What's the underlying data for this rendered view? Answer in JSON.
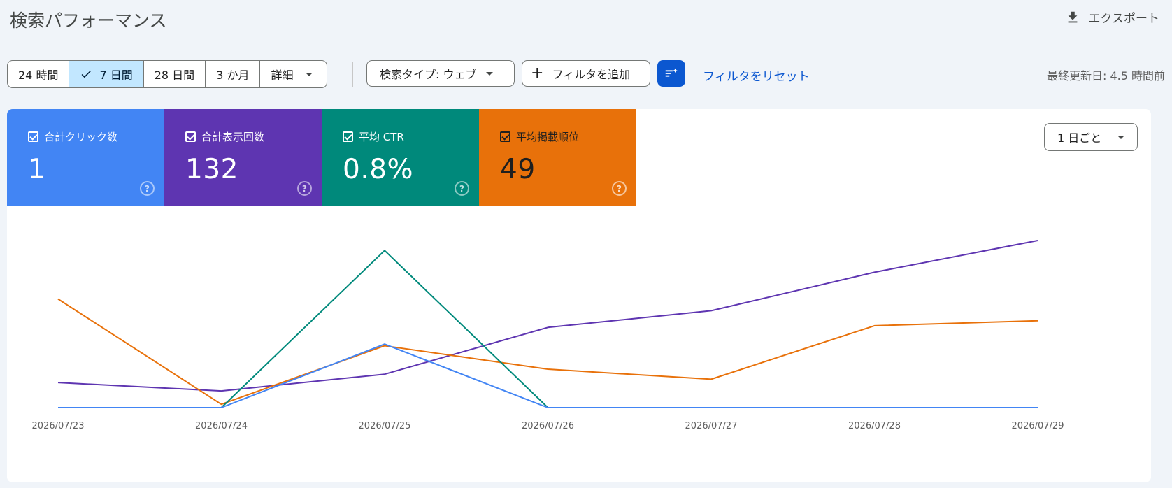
{
  "header": {
    "title": "検索パフォーマンス",
    "export_label": "エクスポート",
    "export_icon": "download-icon"
  },
  "toolbar": {
    "ranges": [
      {
        "label": "24 時間",
        "selected": false
      },
      {
        "label": "7 日間",
        "selected": true
      },
      {
        "label": "28 日間",
        "selected": false
      },
      {
        "label": "3 か月",
        "selected": false
      },
      {
        "label": "詳細",
        "selected": false
      }
    ],
    "search_type_label": "検索タイプ: ウェブ",
    "add_filter_label": "フィルタを追加",
    "reset_filter_label": "フィルタをリセット",
    "last_updated": "最終更新日: 4.5 時間前"
  },
  "metrics": [
    {
      "label": "合計クリック数",
      "value": "1",
      "color": "#4285f4"
    },
    {
      "label": "合計表示回数",
      "value": "132",
      "color": "#5e35b1"
    },
    {
      "label": "平均 CTR",
      "value": "0.8%",
      "color": "#00897b"
    },
    {
      "label": "平均掲載順位",
      "value": "49",
      "color": "#e8710a"
    }
  ],
  "granularity_label": "1 日ごと",
  "chart_data": {
    "type": "line",
    "categories": [
      "2026/07/23",
      "2026/07/24",
      "2026/07/25",
      "2026/07/26",
      "2026/07/27",
      "2026/07/28",
      "2026/07/29"
    ],
    "series": [
      {
        "name": "合計表示回数",
        "color": "#5e35b1",
        "values": [
          0.15,
          0.1,
          0.2,
          0.48,
          0.58,
          0.81,
          1.0
        ]
      },
      {
        "name": "平均掲載順位",
        "color": "#e8710a",
        "values": [
          0.65,
          0.02,
          0.37,
          0.23,
          0.17,
          0.49,
          0.52
        ]
      },
      {
        "name": "平均 CTR",
        "color": "#00897b",
        "values": [
          0.0,
          0.0,
          0.94,
          0.0,
          0.0,
          0.0,
          0.0
        ]
      },
      {
        "name": "合計クリック数",
        "color": "#4285f4",
        "values": [
          0.0,
          0.0,
          0.38,
          0.0,
          0.0,
          0.0,
          0.0
        ]
      }
    ],
    "grid": false
  }
}
